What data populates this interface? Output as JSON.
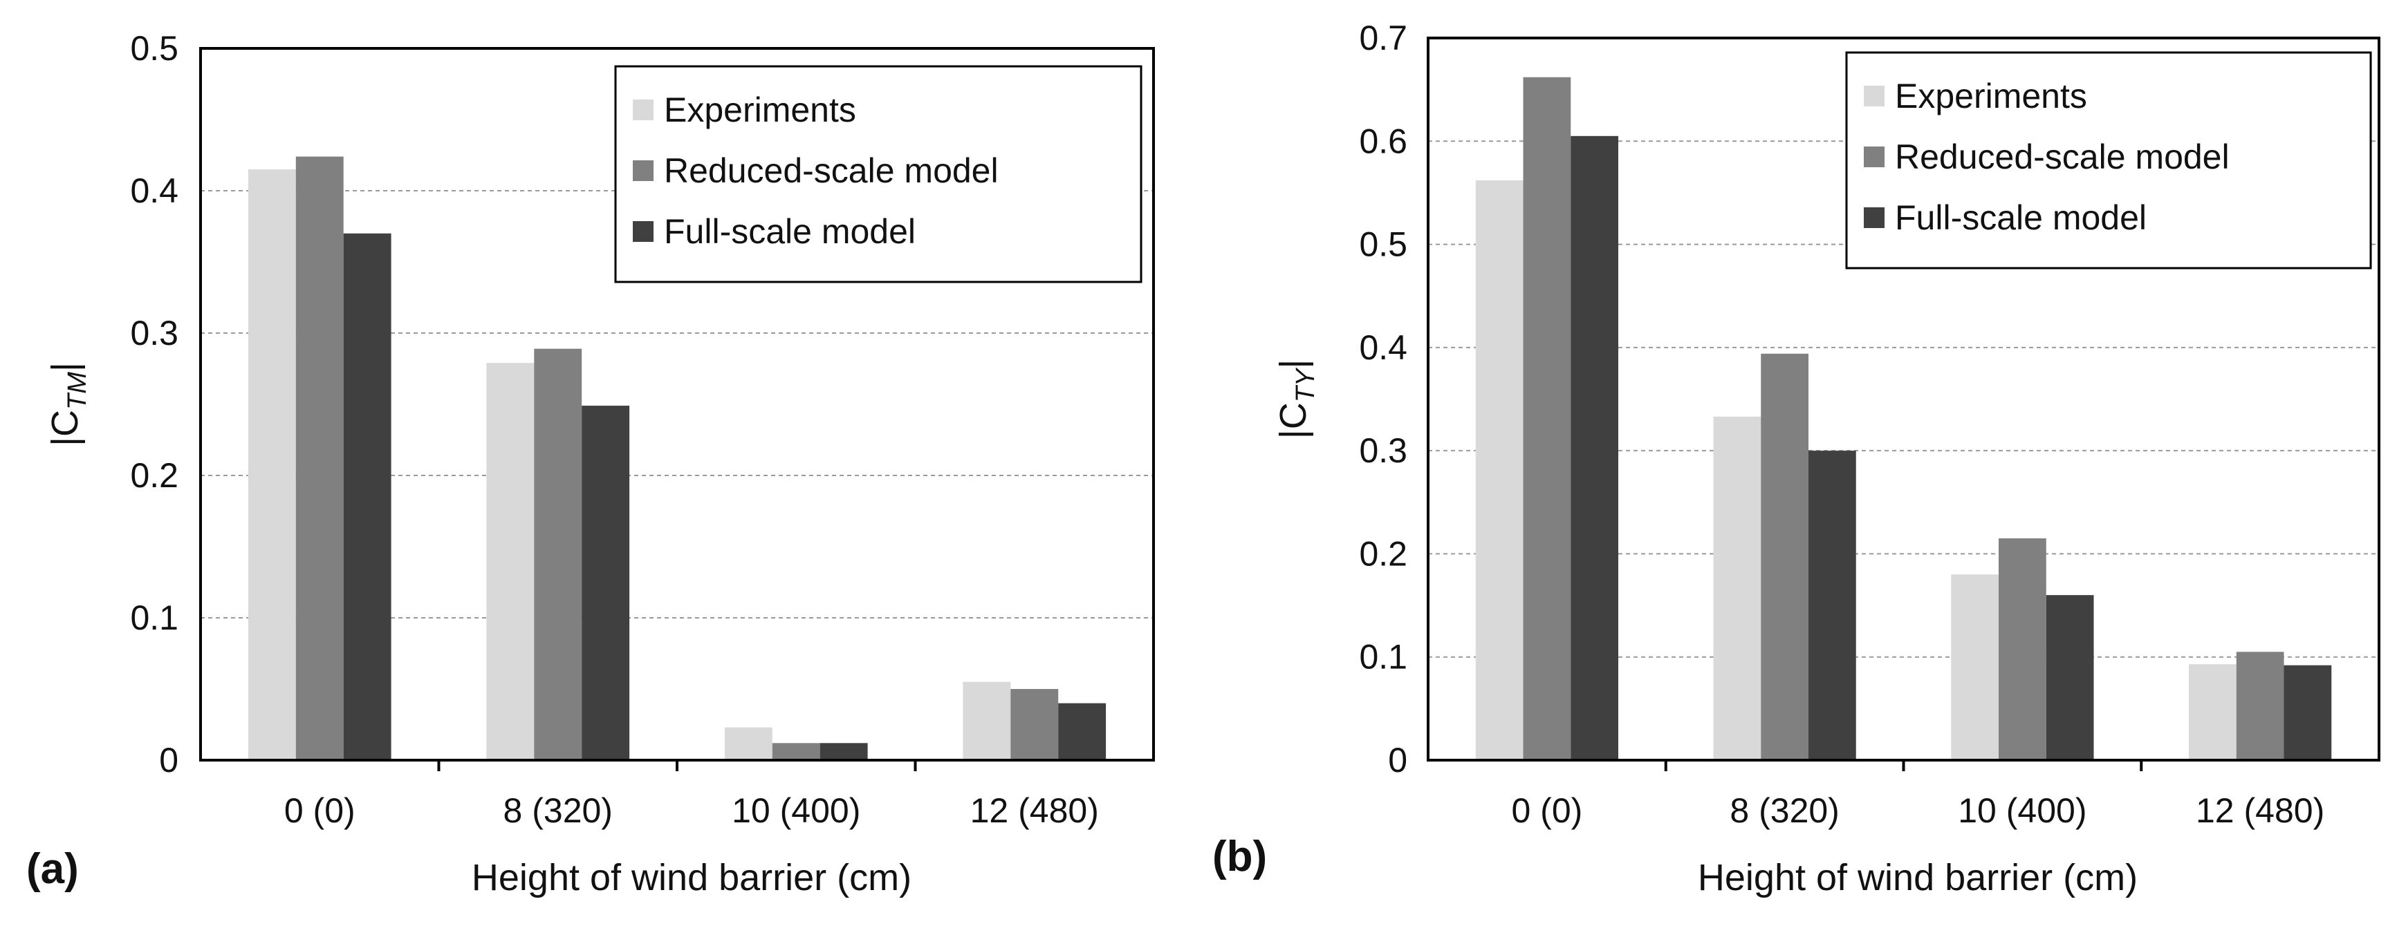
{
  "chart_data": [
    {
      "type": "bar",
      "panel_label": "(a)",
      "ylabel": {
        "base": "|C",
        "sub": "TM",
        "close": "|"
      },
      "xlabel": "Height of wind barrier (cm)",
      "categories": [
        "0 (0)",
        "8 (320)",
        "10 (400)",
        "12 (480)"
      ],
      "ylim": [
        0,
        0.5
      ],
      "yticks": [
        "0",
        "0.1",
        "0.2",
        "0.3",
        "0.4",
        "0.5"
      ],
      "grid": true,
      "legend_position": "top-right",
      "series": [
        {
          "name": "Experiments",
          "color": "#d9d9d9",
          "values": [
            0.415,
            0.279,
            0.023,
            0.055
          ]
        },
        {
          "name": "Reduced-scale model",
          "color": "#808080",
          "values": [
            0.424,
            0.289,
            0.012,
            0.05
          ]
        },
        {
          "name": "Full-scale model",
          "color": "#404040",
          "values": [
            0.37,
            0.249,
            0.012,
            0.04
          ]
        }
      ]
    },
    {
      "type": "bar",
      "panel_label": "(b)",
      "ylabel": {
        "base": "|C",
        "sub": "TY",
        "close": "|"
      },
      "xlabel": "Height of wind barrier (cm)",
      "categories": [
        "0 (0)",
        "8 (320)",
        "10 (400)",
        "12 (480)"
      ],
      "ylim": [
        0,
        0.7
      ],
      "yticks": [
        "0",
        "0.1",
        "0.2",
        "0.3",
        "0.4",
        "0.5",
        "0.6",
        "0.7"
      ],
      "grid": true,
      "legend_position": "top-right",
      "series": [
        {
          "name": "Experiments",
          "color": "#d9d9d9",
          "values": [
            0.562,
            0.333,
            0.18,
            0.093
          ]
        },
        {
          "name": "Reduced-scale model",
          "color": "#808080",
          "values": [
            0.662,
            0.394,
            0.215,
            0.105
          ]
        },
        {
          "name": "Full-scale model",
          "color": "#404040",
          "values": [
            0.605,
            0.3,
            0.16,
            0.092
          ]
        }
      ]
    }
  ]
}
